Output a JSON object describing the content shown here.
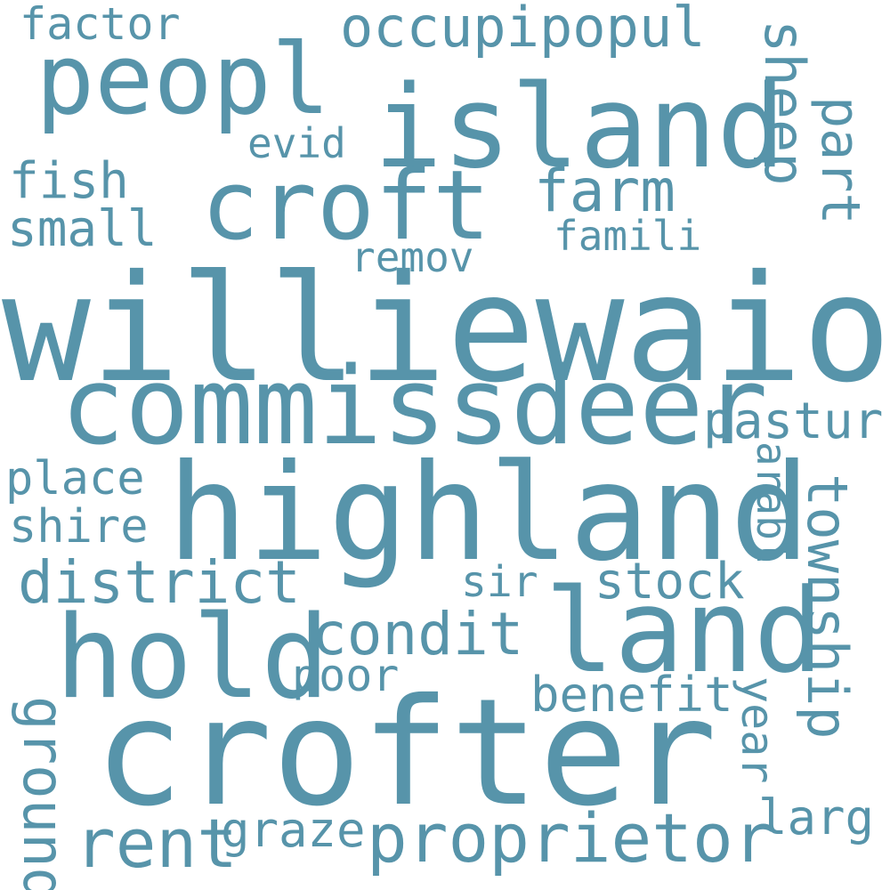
{
  "color": "#5794aa",
  "words": {
    "factor": "factor",
    "occupipopul": "occupipopul",
    "peopl": "peopl",
    "island": "island",
    "sheep": "sheep",
    "part": "part",
    "evid": "evid",
    "croft": "croft",
    "farm": "farm",
    "fish": "fish",
    "small": "small",
    "famili": "famili",
    "remov": "remov",
    "williewaiola": "williewaiola",
    "commissdeer": "commissdeer",
    "pastur": "pastur",
    "arabl": "arabl",
    "place": "place",
    "highland": "highland",
    "township": "township",
    "shire": "shire",
    "district": "district",
    "sir": "sir",
    "stock": "stock",
    "land": "land",
    "hold": "hold",
    "condit": "condit",
    "poor": "poor",
    "benefit": "benefit",
    "year": "year",
    "ground": "ground",
    "crofter": "crofter",
    "rent": "rent",
    "graze": "graze",
    "proprietor": "proprietor",
    "larg": "larg"
  }
}
